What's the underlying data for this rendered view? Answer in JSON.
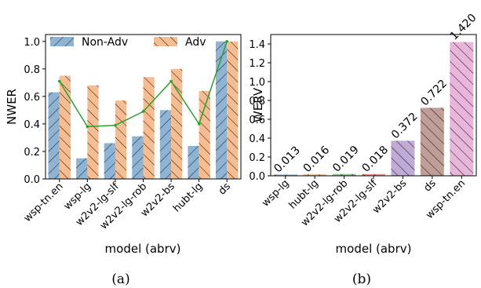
{
  "chart_data": [
    {
      "type": "bar",
      "categories": [
        "wsp-tn.en",
        "wsp-lg",
        "w2v2-lg-slf",
        "w2v2-lg-rob",
        "w2v2-bs",
        "hubt-lg",
        "ds"
      ],
      "series": [
        {
          "name": "Non-Adv",
          "values": [
            0.63,
            0.15,
            0.26,
            0.31,
            0.5,
            0.24,
            1.0
          ],
          "color": "#8fb3d3",
          "hatch": "/"
        },
        {
          "name": "Adv",
          "values": [
            0.75,
            0.68,
            0.57,
            0.74,
            0.8,
            0.64,
            1.0
          ],
          "color": "#f5bd91",
          "hatch": "\\"
        }
      ],
      "overlay_line": {
        "values": [
          0.71,
          0.38,
          0.39,
          0.49,
          0.71,
          0.4,
          1.0
        ],
        "color": "#2ca02c"
      },
      "xlabel": "model (abrv)",
      "ylabel": "NWER",
      "ylim": [
        0,
        1.05
      ],
      "yticks": [
        "0.0",
        "0.2",
        "0.4",
        "0.6",
        "0.8",
        "1.0"
      ],
      "legend": "top",
      "caption": "(a)"
    },
    {
      "type": "bar",
      "categories": [
        "wsp-lg",
        "hubt-lg",
        "w2v2-lg-rob",
        "w2v2-lg-slf",
        "w2v2-bs",
        "ds",
        "wsp-tn.en"
      ],
      "values": [
        0.013,
        0.016,
        0.019,
        0.018,
        0.372,
        0.722,
        1.42
      ],
      "value_labels": [
        "0.013",
        "0.016",
        "0.019",
        "0.018",
        "0.372",
        "0.722",
        "1.420"
      ],
      "colors": [
        "#8fb3d3",
        "#f5bd91",
        "#93c793",
        "#e79493",
        "#c0aad6",
        "#bf9e98",
        "#e8b6dc"
      ],
      "hatch": "\\",
      "xlabel": "model (abrv)",
      "ylabel": "WERV",
      "ylim": [
        0,
        1.5
      ],
      "yticks": [
        "0.0",
        "0.2",
        "0.4",
        "0.6",
        "0.8",
        "1.0",
        "1.2",
        "1.4"
      ],
      "caption": "(b)"
    }
  ]
}
